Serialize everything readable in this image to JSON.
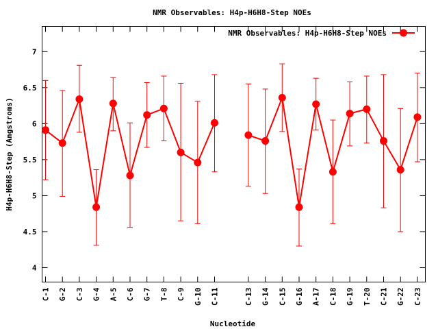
{
  "chart_data": {
    "type": "line",
    "title": "NMR Observables: H4p-H6H8-Step NOEs",
    "xlabel": "Nucleotide",
    "ylabel": "H4p-H6H8-Step (Angstroms)",
    "ylim": [
      3.8,
      7.35
    ],
    "yticks": [
      "4",
      "4.5",
      "5",
      "5.5",
      "6",
      "6.5",
      "7"
    ],
    "yticks_values": [
      4,
      4.5,
      5,
      5.5,
      6,
      6.5,
      7
    ],
    "legend_position": "top-right",
    "grid": false,
    "categories": [
      "C-1",
      "G-2",
      "C-3",
      "G-4",
      "A-5",
      "C-6",
      "G-7",
      "T-8",
      "C-9",
      "G-10",
      "C-11",
      "",
      "C-13",
      "G-14",
      "C-15",
      "G-16",
      "A-17",
      "C-18",
      "G-19",
      "T-20",
      "C-21",
      "G-22",
      "C-23"
    ],
    "series": [
      {
        "name": "NMR Observables: H4p-H6H8-Step NOEs",
        "color": "#ff0000",
        "values": [
          5.91,
          5.73,
          6.34,
          4.84,
          6.28,
          5.28,
          6.12,
          6.21,
          5.6,
          5.46,
          6.01,
          null,
          5.84,
          5.76,
          6.36,
          4.84,
          6.27,
          5.33,
          6.14,
          6.2,
          5.76,
          5.36,
          6.09
        ],
        "err_low": [
          5.22,
          4.99,
          5.88,
          4.31,
          5.9,
          4.56,
          5.67,
          5.76,
          4.65,
          4.61,
          5.33,
          null,
          5.13,
          5.03,
          5.89,
          4.3,
          5.91,
          4.61,
          5.69,
          5.73,
          4.83,
          4.5,
          5.47
        ],
        "err_high": [
          6.6,
          6.46,
          6.81,
          5.36,
          6.64,
          6.01,
          6.57,
          6.66,
          6.56,
          6.31,
          6.68,
          null,
          6.55,
          6.48,
          6.83,
          5.37,
          6.63,
          6.05,
          6.58,
          6.66,
          6.68,
          6.21,
          6.7
        ]
      }
    ]
  }
}
